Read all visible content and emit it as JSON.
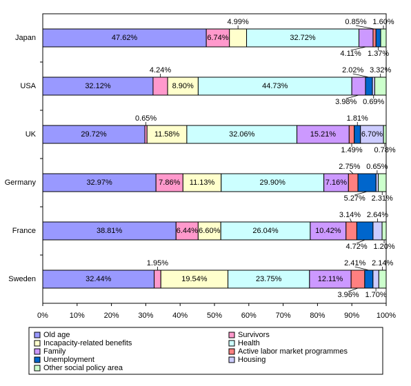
{
  "chart_data": {
    "type": "bar",
    "orientation": "horizontal",
    "stacked": true,
    "categories": [
      "Japan",
      "USA",
      "UK",
      "Germany",
      "France",
      "Sweden"
    ],
    "series": [
      {
        "name": "Old age",
        "color": "#9999ff",
        "values": [
          47.62,
          32.12,
          29.72,
          32.97,
          38.81,
          32.44
        ],
        "value_labels": [
          "47.62%",
          "32.12%",
          "29.72%",
          "32.97%",
          "38.81%",
          "32.44%"
        ]
      },
      {
        "name": "Survivors",
        "color": "#ff99cc",
        "values": [
          6.74,
          4.24,
          0.65,
          7.86,
          6.44,
          1.95
        ],
        "value_labels": [
          "6.74%",
          "4.24%",
          "0.65%",
          "7.86%",
          "6.44%",
          "1.95%"
        ]
      },
      {
        "name": "Incapacity-related benefits",
        "color": "#ffffcc",
        "values": [
          4.99,
          8.9,
          11.58,
          11.13,
          6.6,
          19.54
        ],
        "value_labels": [
          "4.99%",
          "8.90%",
          "11.58%",
          "11.13%",
          "6.60%",
          "19.54%"
        ]
      },
      {
        "name": "Health",
        "color": "#ccffff",
        "values": [
          32.72,
          44.73,
          32.06,
          29.9,
          26.04,
          23.75
        ],
        "value_labels": [
          "32.72%",
          "44.73%",
          "32.06%",
          "29.90%",
          "26.04%",
          "23.75%"
        ]
      },
      {
        "name": "Family",
        "color": "#cc99ff",
        "values": [
          4.11,
          3.98,
          15.21,
          7.16,
          10.42,
          12.11
        ],
        "value_labels": [
          "4.11%",
          "3.98%",
          "15.21%",
          "7.16%",
          "10.42%",
          "12.11%"
        ]
      },
      {
        "name": "Active labor market programmes",
        "color": "#ff8080",
        "values": [
          0.85,
          null,
          1.49,
          2.75,
          3.14,
          3.96
        ],
        "value_labels": [
          "0.85%",
          null,
          "1.49%",
          "2.75%",
          "3.14%",
          "3.96%"
        ]
      },
      {
        "name": "Unemployment",
        "color": "#0066cc",
        "values": [
          1.37,
          2.02,
          1.81,
          5.27,
          4.72,
          2.41
        ],
        "value_labels": [
          "1.37%",
          "2.02%",
          "1.81%",
          "5.27%",
          "4.72%",
          "2.41%"
        ]
      },
      {
        "name": "Housing",
        "color": "#ccccff",
        "values": [
          null,
          0.69,
          6.7,
          0.65,
          2.64,
          1.7
        ],
        "value_labels": [
          null,
          "0.69%",
          "6.70%",
          "0.65%",
          "2.64%",
          "1.70%"
        ]
      },
      {
        "name": "Other social policy area",
        "color": "#ccffcc",
        "values": [
          1.6,
          3.32,
          0.78,
          2.31,
          1.2,
          2.14
        ],
        "value_labels": [
          "1.60%",
          "3.32%",
          "0.78%",
          "2.31%",
          "1.20%",
          "2.14%"
        ]
      }
    ],
    "xlim": [
      0,
      100
    ],
    "xticks": [
      {
        "value": 0,
        "label": "0%"
      },
      {
        "value": 10,
        "label": "10%"
      },
      {
        "value": 20,
        "label": "20%"
      },
      {
        "value": 30,
        "label": "30%"
      },
      {
        "value": 40,
        "label": "40%"
      },
      {
        "value": 50,
        "label": "50%"
      },
      {
        "value": 60,
        "label": "60%"
      },
      {
        "value": 70,
        "label": "70%"
      },
      {
        "value": 80,
        "label": "80%"
      },
      {
        "value": 90,
        "label": "90%"
      },
      {
        "value": 100,
        "label": "100%"
      }
    ],
    "grid": false,
    "legend": "bottom"
  }
}
